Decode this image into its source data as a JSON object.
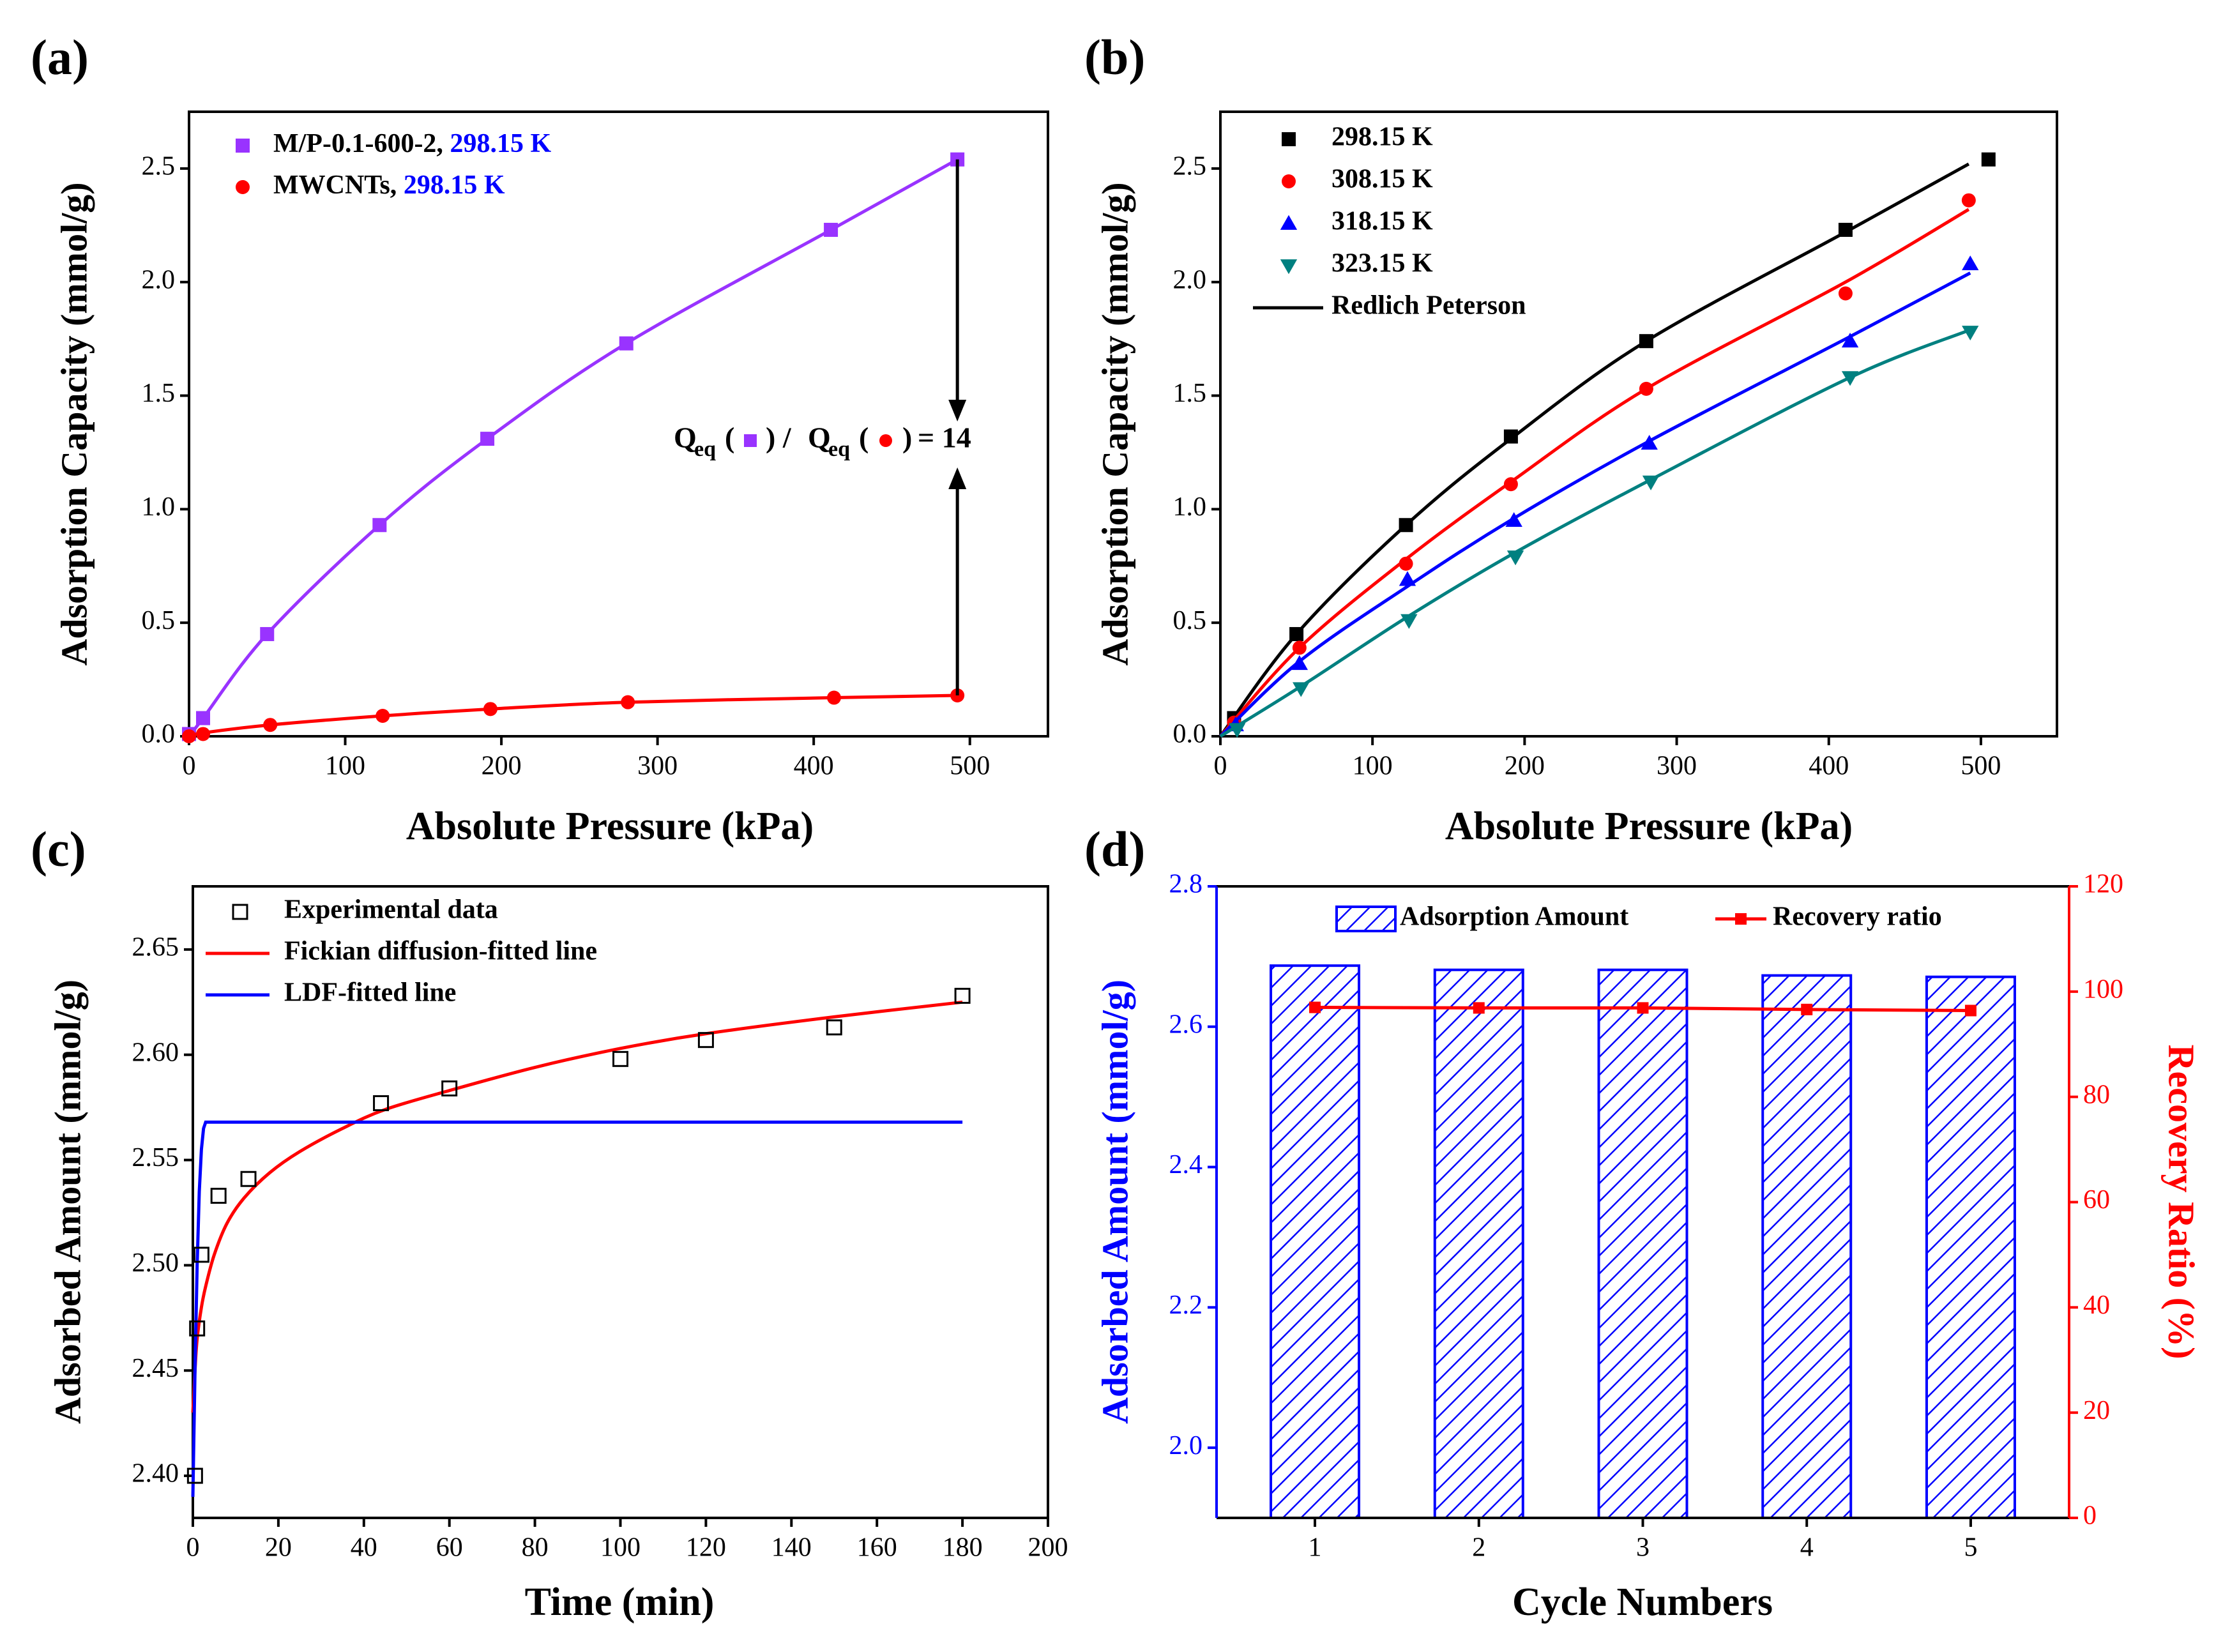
{
  "colors": {
    "purple": "#9933FF",
    "red": "#FF0000",
    "blue": "#0000FF",
    "black": "#000000",
    "teal": "#008080",
    "legend_blue": "#0000FF"
  },
  "chart_data": [
    {
      "id": "a",
      "panel_label": "(a)",
      "type": "line",
      "title": "",
      "xlabel": "Absolute Pressure (kPa)",
      "ylabel": "Adsorption Capacity (mmol/g)",
      "xlim": [
        0,
        550
      ],
      "ylim": [
        0,
        2.75
      ],
      "xticks": [
        0,
        100,
        200,
        300,
        400,
        500
      ],
      "yticks": [
        0.0,
        0.5,
        1.0,
        1.5,
        2.0,
        2.5
      ],
      "ytick_decimals": 1,
      "series": [
        {
          "name": "M/P-0.1-600-2",
          "legend_label": "M/P-0.1-600-2,",
          "legend_temp": "298.15 K",
          "marker": "square",
          "color": "#9933FF",
          "x": [
            0,
            9,
            50,
            122,
            191,
            280,
            411,
            492
          ],
          "y": [
            0.01,
            0.08,
            0.45,
            0.93,
            1.31,
            1.73,
            2.23,
            2.54
          ],
          "fit_x": [
            0,
            9,
            50,
            122,
            191,
            280,
            411,
            492
          ],
          "fit_y": [
            0.0,
            0.08,
            0.45,
            0.93,
            1.31,
            1.73,
            2.23,
            2.54
          ]
        },
        {
          "name": "MWCNTs",
          "legend_label": "MWCNTs,",
          "legend_temp": "298.15 K",
          "marker": "circle",
          "color": "#FF0000",
          "x": [
            0,
            9,
            52,
            124,
            193,
            281,
            413,
            492
          ],
          "y": [
            0.0,
            0.01,
            0.05,
            0.09,
            0.12,
            0.15,
            0.17,
            0.18
          ],
          "fit_x": [
            0,
            9,
            52,
            124,
            193,
            281,
            413,
            492
          ],
          "fit_y": [
            0.0,
            0.015,
            0.05,
            0.09,
            0.12,
            0.15,
            0.17,
            0.18
          ]
        }
      ],
      "annotation": {
        "q_text": "Q",
        "q_sub": "eq",
        "ratio_value": "= 14",
        "parts": [
          "(",
          ") / ",
          "(",
          ")"
        ]
      }
    },
    {
      "id": "b",
      "panel_label": "(b)",
      "type": "scatter",
      "title": "",
      "xlabel": "Absolute Pressure (kPa)",
      "ylabel": "Adsorption Capacity (mmol/g)",
      "xlim": [
        0,
        550
      ],
      "ylim": [
        0,
        2.75
      ],
      "xticks": [
        0,
        100,
        200,
        300,
        400,
        500
      ],
      "yticks": [
        0.0,
        0.5,
        1.0,
        1.5,
        2.0,
        2.5
      ],
      "ytick_decimals": 1,
      "series": [
        {
          "name": "298.15 K",
          "marker": "square",
          "color": "#000000",
          "x": [
            9,
            50,
            122,
            191,
            280,
            411,
            505
          ],
          "y": [
            0.08,
            0.45,
            0.93,
            1.32,
            1.74,
            2.23,
            2.54
          ],
          "fit_x": [
            0,
            50,
            122,
            191,
            280,
            411,
            492
          ],
          "fit_y": [
            0.0,
            0.45,
            0.93,
            1.31,
            1.74,
            2.22,
            2.52
          ]
        },
        {
          "name": "308.15 K",
          "marker": "circle",
          "color": "#FF0000",
          "x": [
            9,
            52,
            122,
            191,
            280,
            411,
            492
          ],
          "y": [
            0.06,
            0.39,
            0.76,
            1.11,
            1.53,
            1.95,
            2.36
          ],
          "fit_x": [
            0,
            52,
            122,
            191,
            280,
            411,
            492
          ],
          "fit_y": [
            0.0,
            0.39,
            0.78,
            1.12,
            1.53,
            2.0,
            2.32
          ]
        },
        {
          "name": "318.15 K",
          "marker": "triangle-up",
          "color": "#0000FF",
          "x": [
            10,
            52,
            123,
            193,
            282,
            414,
            493
          ],
          "y": [
            0.05,
            0.32,
            0.69,
            0.95,
            1.29,
            1.74,
            2.08
          ],
          "fit_x": [
            0,
            52,
            123,
            193,
            282,
            414,
            493
          ],
          "fit_y": [
            0.0,
            0.33,
            0.66,
            0.96,
            1.3,
            1.76,
            2.04
          ]
        },
        {
          "name": "323.15 K",
          "marker": "triangle-down",
          "color": "#008080",
          "x": [
            11,
            53,
            124,
            194,
            283,
            414,
            493
          ],
          "y": [
            0.03,
            0.21,
            0.51,
            0.79,
            1.12,
            1.58,
            1.78
          ],
          "fit_x": [
            0,
            53,
            124,
            194,
            283,
            414,
            493
          ],
          "fit_y": [
            0.0,
            0.22,
            0.53,
            0.81,
            1.13,
            1.58,
            1.79
          ]
        }
      ],
      "fit_legend": "Redlich Peterson"
    },
    {
      "id": "c",
      "panel_label": "(c)",
      "type": "line",
      "title": "",
      "xlabel": "Time (min)",
      "ylabel": "Adsorbed Amount (mmol/g)",
      "xlim": [
        0,
        200
      ],
      "ylim": [
        2.38,
        2.68
      ],
      "xticks": [
        0,
        20,
        40,
        60,
        80,
        100,
        120,
        140,
        160,
        180,
        200
      ],
      "yticks": [
        2.4,
        2.45,
        2.5,
        2.55,
        2.6,
        2.65
      ],
      "ytick_decimals": 2,
      "series": [
        {
          "name": "Experimental data",
          "marker": "open-square",
          "color": "#000000",
          "x": [
            0.5,
            1,
            2,
            6,
            13,
            44,
            60,
            100,
            120,
            150,
            180
          ],
          "y": [
            2.4,
            2.47,
            2.505,
            2.533,
            2.541,
            2.577,
            2.584,
            2.598,
            2.607,
            2.613,
            2.628
          ]
        },
        {
          "name": "Fickian diffusion-fitted line",
          "marker": "line",
          "color": "#FF0000",
          "x": [
            0,
            0.5,
            1,
            2,
            3,
            5,
            8,
            12,
            18,
            25,
            35,
            45,
            60,
            80,
            100,
            120,
            150,
            180
          ],
          "y": [
            2.43,
            2.45,
            2.465,
            2.48,
            2.49,
            2.505,
            2.52,
            2.532,
            2.544,
            2.554,
            2.565,
            2.574,
            2.583,
            2.594,
            2.603,
            2.61,
            2.618,
            2.625
          ]
        },
        {
          "name": "LDF-fitted line",
          "marker": "line",
          "color": "#0000FF",
          "x": [
            0,
            0.5,
            1.0,
            1.5,
            2.0,
            2.5,
            3,
            180
          ],
          "y": [
            2.39,
            2.45,
            2.5,
            2.535,
            2.555,
            2.565,
            2.568,
            2.568
          ]
        }
      ]
    },
    {
      "id": "d",
      "panel_label": "(d)",
      "type": "bar",
      "title": "",
      "xlabel": "Cycle Numbers",
      "ylabel": "Adsorbed Amount (mmol/g)",
      "ylabel_right": "Recovery Ratio (%)",
      "categories": [
        "1",
        "2",
        "3",
        "4",
        "5"
      ],
      "ylim": [
        1.9,
        2.8
      ],
      "ylim_right": [
        0,
        120
      ],
      "yticks": [
        2.0,
        2.2,
        2.4,
        2.6,
        2.8
      ],
      "yticks_right": [
        0,
        20,
        40,
        60,
        80,
        100,
        120
      ],
      "ytick_decimals": 1,
      "series": [
        {
          "name": "Adsorption Amount",
          "kind": "bar",
          "color": "#0000FF",
          "values": [
            2.687,
            2.681,
            2.681,
            2.673,
            2.671
          ]
        },
        {
          "name": "Recovery ratio",
          "kind": "line",
          "color": "#FF0000",
          "values": [
            97.0,
            96.9,
            96.9,
            96.6,
            96.4
          ]
        }
      ]
    }
  ]
}
